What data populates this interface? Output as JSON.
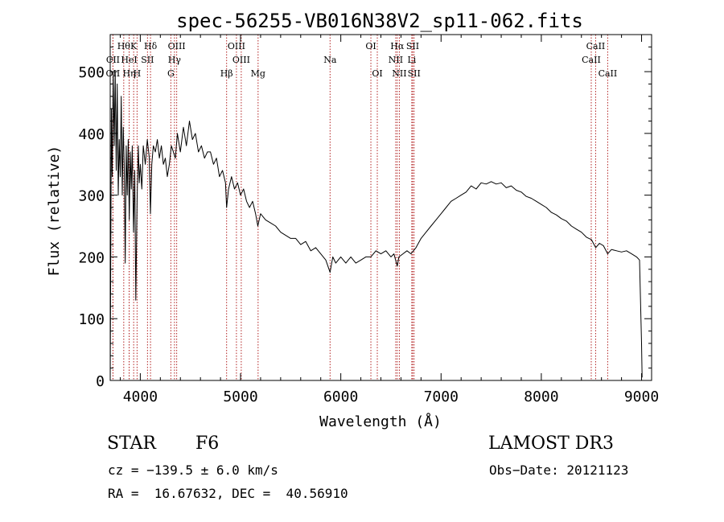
{
  "chart_data": {
    "type": "line",
    "title": "spec-56255-VB016N38V2_sp11-062.fits",
    "xlabel": "Wavelength (Å)",
    "ylabel": "Flux (relative)",
    "xlim": [
      3700,
      9100
    ],
    "ylim": [
      0,
      560
    ],
    "xticks": [
      4000,
      5000,
      6000,
      7000,
      8000,
      9000
    ],
    "yticks": [
      0,
      100,
      200,
      300,
      400,
      500
    ],
    "grid": false,
    "line_color": "#000000",
    "marker_color": "#b22222",
    "series": [
      {
        "name": "flux",
        "points": [
          [
            3700,
            0
          ],
          [
            3705,
            180
          ],
          [
            3712,
            440
          ],
          [
            3720,
            330
          ],
          [
            3730,
            500
          ],
          [
            3740,
            380
          ],
          [
            3750,
            500
          ],
          [
            3760,
            340
          ],
          [
            3770,
            480
          ],
          [
            3780,
            300
          ],
          [
            3790,
            390
          ],
          [
            3800,
            330
          ],
          [
            3810,
            460
          ],
          [
            3820,
            300
          ],
          [
            3830,
            410
          ],
          [
            3840,
            350
          ],
          [
            3850,
            190
          ],
          [
            3860,
            380
          ],
          [
            3870,
            300
          ],
          [
            3880,
            390
          ],
          [
            3890,
            260
          ],
          [
            3900,
            370
          ],
          [
            3910,
            310
          ],
          [
            3920,
            380
          ],
          [
            3933,
            240
          ],
          [
            3945,
            340
          ],
          [
            3955,
            130
          ],
          [
            3968,
            290
          ],
          [
            3980,
            380
          ],
          [
            3990,
            320
          ],
          [
            4000,
            350
          ],
          [
            4015,
            310
          ],
          [
            4030,
            380
          ],
          [
            4050,
            350
          ],
          [
            4070,
            390
          ],
          [
            4090,
            360
          ],
          [
            4101,
            270
          ],
          [
            4115,
            350
          ],
          [
            4130,
            380
          ],
          [
            4150,
            370
          ],
          [
            4170,
            390
          ],
          [
            4190,
            360
          ],
          [
            4210,
            380
          ],
          [
            4230,
            350
          ],
          [
            4250,
            360
          ],
          [
            4270,
            330
          ],
          [
            4290,
            350
          ],
          [
            4310,
            380
          ],
          [
            4330,
            370
          ],
          [
            4350,
            360
          ],
          [
            4370,
            400
          ],
          [
            4400,
            370
          ],
          [
            4430,
            410
          ],
          [
            4460,
            380
          ],
          [
            4490,
            420
          ],
          [
            4520,
            390
          ],
          [
            4550,
            400
          ],
          [
            4580,
            370
          ],
          [
            4610,
            380
          ],
          [
            4640,
            360
          ],
          [
            4670,
            370
          ],
          [
            4700,
            370
          ],
          [
            4730,
            350
          ],
          [
            4760,
            360
          ],
          [
            4790,
            330
          ],
          [
            4820,
            340
          ],
          [
            4850,
            320
          ],
          [
            4861,
            280
          ],
          [
            4880,
            310
          ],
          [
            4910,
            330
          ],
          [
            4940,
            310
          ],
          [
            4970,
            320
          ],
          [
            5000,
            300
          ],
          [
            5030,
            310
          ],
          [
            5060,
            290
          ],
          [
            5090,
            280
          ],
          [
            5120,
            290
          ],
          [
            5150,
            270
          ],
          [
            5172,
            250
          ],
          [
            5200,
            270
          ],
          [
            5250,
            260
          ],
          [
            5300,
            255
          ],
          [
            5350,
            250
          ],
          [
            5400,
            240
          ],
          [
            5450,
            235
          ],
          [
            5500,
            230
          ],
          [
            5550,
            230
          ],
          [
            5600,
            220
          ],
          [
            5650,
            225
          ],
          [
            5700,
            210
          ],
          [
            5750,
            215
          ],
          [
            5800,
            205
          ],
          [
            5850,
            195
          ],
          [
            5893,
            175
          ],
          [
            5920,
            200
          ],
          [
            5950,
            190
          ],
          [
            6000,
            200
          ],
          [
            6050,
            190
          ],
          [
            6100,
            200
          ],
          [
            6150,
            190
          ],
          [
            6200,
            195
          ],
          [
            6250,
            200
          ],
          [
            6300,
            200
          ],
          [
            6350,
            210
          ],
          [
            6400,
            205
          ],
          [
            6450,
            210
          ],
          [
            6500,
            200
          ],
          [
            6530,
            205
          ],
          [
            6563,
            185
          ],
          [
            6580,
            200
          ],
          [
            6620,
            205
          ],
          [
            6660,
            210
          ],
          [
            6700,
            205
          ],
          [
            6750,
            215
          ],
          [
            6800,
            230
          ],
          [
            6850,
            240
          ],
          [
            6900,
            250
          ],
          [
            6950,
            260
          ],
          [
            7000,
            270
          ],
          [
            7050,
            280
          ],
          [
            7100,
            290
          ],
          [
            7150,
            295
          ],
          [
            7200,
            300
          ],
          [
            7250,
            305
          ],
          [
            7300,
            315
          ],
          [
            7350,
            310
          ],
          [
            7400,
            320
          ],
          [
            7450,
            318
          ],
          [
            7500,
            322
          ],
          [
            7550,
            318
          ],
          [
            7600,
            320
          ],
          [
            7650,
            312
          ],
          [
            7700,
            315
          ],
          [
            7750,
            308
          ],
          [
            7800,
            305
          ],
          [
            7850,
            298
          ],
          [
            7900,
            295
          ],
          [
            7950,
            290
          ],
          [
            8000,
            285
          ],
          [
            8050,
            280
          ],
          [
            8100,
            272
          ],
          [
            8150,
            268
          ],
          [
            8200,
            262
          ],
          [
            8250,
            258
          ],
          [
            8300,
            250
          ],
          [
            8350,
            245
          ],
          [
            8400,
            240
          ],
          [
            8450,
            232
          ],
          [
            8500,
            228
          ],
          [
            8542,
            215
          ],
          [
            8580,
            222
          ],
          [
            8620,
            218
          ],
          [
            8662,
            205
          ],
          [
            8700,
            212
          ],
          [
            8750,
            210
          ],
          [
            8800,
            208
          ],
          [
            8850,
            210
          ],
          [
            8900,
            205
          ],
          [
            8950,
            200
          ],
          [
            8980,
            195
          ],
          [
            9000,
            60
          ],
          [
            9005,
            5
          ]
        ]
      }
    ],
    "lines": [
      {
        "name": "H9",
        "label": "Hθ",
        "x": 3835,
        "row": 0
      },
      {
        "name": "K",
        "label": "K",
        "x": 3934,
        "row": 0
      },
      {
        "name": "Hdelta",
        "label": "Hδ",
        "x": 4102,
        "row": 0
      },
      {
        "name": "OIII-a",
        "label": "OIII",
        "x": 4363,
        "row": 0
      },
      {
        "name": "OIII-b",
        "label": "OIII",
        "x": 4959,
        "row": 0
      },
      {
        "name": "OI-a",
        "label": "OI",
        "x": 6300,
        "row": 0
      },
      {
        "name": "Halpha",
        "label": "Hα",
        "x": 6563,
        "row": 0
      },
      {
        "name": "SII-a",
        "label": "SII",
        "x": 6717,
        "row": 0
      },
      {
        "name": "CaII-a",
        "label": "CaII",
        "x": 8542,
        "row": 0
      },
      {
        "name": "CII",
        "label": "CII",
        "x": 3728,
        "row": 1
      },
      {
        "name": "HeI",
        "label": "HeI",
        "x": 3889,
        "row": 1
      },
      {
        "name": "SII-b",
        "label": "SII",
        "x": 4072,
        "row": 1
      },
      {
        "name": "Hgamma",
        "label": "Hγ",
        "x": 4341,
        "row": 1
      },
      {
        "name": "OIII-c",
        "label": "OIII",
        "x": 5007,
        "row": 1
      },
      {
        "name": "Na",
        "label": "Na",
        "x": 5893,
        "row": 1
      },
      {
        "name": "NII-a",
        "label": "NII",
        "x": 6548,
        "row": 1
      },
      {
        "name": "Li",
        "label": "Li",
        "x": 6708,
        "row": 1
      },
      {
        "name": "CaII-b",
        "label": "CaII",
        "x": 8498,
        "row": 1
      },
      {
        "name": "OII",
        "label": "OII",
        "x": 3727,
        "row": 2
      },
      {
        "name": "Heta",
        "label": "Hη",
        "x": 3889,
        "row": 2
      },
      {
        "name": "H",
        "label": "H",
        "x": 3968,
        "row": 2
      },
      {
        "name": "G",
        "label": "G",
        "x": 4305,
        "row": 2
      },
      {
        "name": "Hbeta",
        "label": "Hβ",
        "x": 4861,
        "row": 2
      },
      {
        "name": "Mg",
        "label": "Mg",
        "x": 5175,
        "row": 2
      },
      {
        "name": "OI-b",
        "label": "OI",
        "x": 6364,
        "row": 2
      },
      {
        "name": "NII-b",
        "label": "NII",
        "x": 6584,
        "row": 2
      },
      {
        "name": "SII-c",
        "label": "SII",
        "x": 6731,
        "row": 2
      },
      {
        "name": "CaII-c",
        "label": "CaII",
        "x": 8662,
        "row": 2
      }
    ]
  },
  "info": {
    "object_class": "STAR",
    "subclass": "F6",
    "survey": "LAMOST DR3",
    "cz": "cz = −139.5 ± 6.0 km/s",
    "obs_date": "Obs−Date: 20121123",
    "coords": "RA =  16.67632, DEC =  40.56910"
  }
}
